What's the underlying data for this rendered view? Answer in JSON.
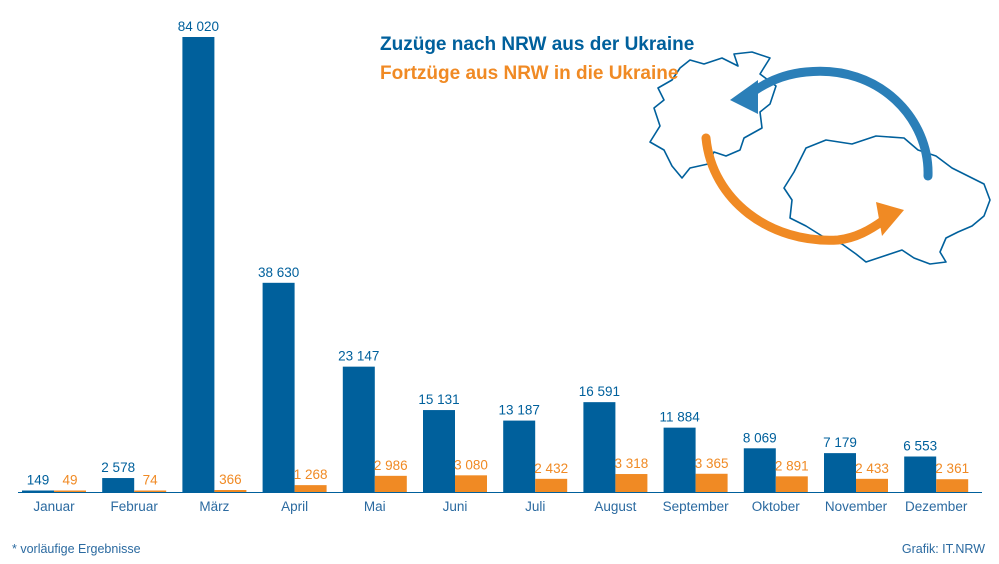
{
  "chart_data": {
    "type": "bar",
    "categories": [
      "Januar",
      "Februar",
      "März",
      "April",
      "Mai",
      "Juni",
      "Juli",
      "August",
      "September",
      "Oktober",
      "November",
      "Dezember"
    ],
    "series": [
      {
        "name": "Zuzüge nach NRW aus der Ukraine",
        "color": "#00609c",
        "values": [
          149,
          2578,
          84020,
          38630,
          23147,
          15131,
          13187,
          16591,
          11884,
          8069,
          7179,
          6553
        ],
        "labels": [
          "149",
          "2 578",
          "84 020",
          "38 630",
          "23 147",
          "15 131",
          "13 187",
          "16 591",
          "11 884",
          "8 069",
          "7 179",
          "6 553"
        ]
      },
      {
        "name": "Fortzüge aus NRW in die Ukraine",
        "color": "#f08a24",
        "values": [
          49,
          74,
          366,
          1268,
          2986,
          3080,
          2432,
          3318,
          3365,
          2891,
          2433,
          2361
        ],
        "labels": [
          "49",
          "74",
          "366",
          "1 268",
          "2 986",
          "3 080",
          "2 432",
          "3 318",
          "3 365",
          "2 891",
          "2 433",
          "2 361"
        ]
      }
    ],
    "legend_position": "top-right",
    "grid": false
  },
  "footnote": "* vorläufige Ergebnisse",
  "credit": "Grafik: IT.NRW",
  "illustration": {
    "icons": [
      "nrw-map-icon",
      "ukraine-map-icon",
      "arrow-to-nrw-icon",
      "arrow-to-ukraine-icon"
    ]
  }
}
